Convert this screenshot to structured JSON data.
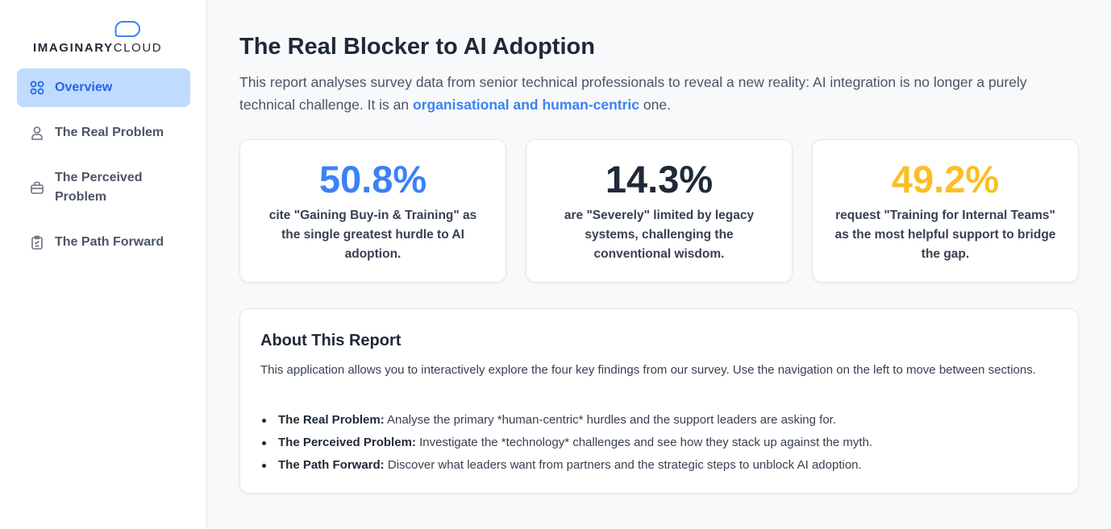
{
  "brand": {
    "name_bold": "IMAGINARY",
    "name_light": "CLOUD",
    "accent": "#3b82f6"
  },
  "sidebar": {
    "items": [
      {
        "label": "Overview",
        "icon": "grid-icon",
        "active": true
      },
      {
        "label": "The Real Problem",
        "icon": "user-icon",
        "active": false
      },
      {
        "label": "The Perceived Problem",
        "icon": "briefcase-icon",
        "active": false
      },
      {
        "label": "The Path Forward",
        "icon": "clipboard-icon",
        "active": false
      }
    ]
  },
  "main": {
    "title": "The Real Blocker to AI Adoption",
    "intro_before": "This report analyses survey data from senior technical professionals to reveal a new reality: AI integration is no longer a purely technical challenge. It is an ",
    "intro_highlight": "organisational and human-centric",
    "intro_after": " one.",
    "stats": [
      {
        "value": "50.8%",
        "text": "cite \"Gaining Buy-in & Training\" as the single greatest hurdle to AI adoption.",
        "color": "#3b82f6"
      },
      {
        "value": "14.3%",
        "text": "are \"Severely\" limited by legacy systems, challenging the conventional wisdom.",
        "color": "#1f2937"
      },
      {
        "value": "49.2%",
        "text": "request \"Training for Internal Teams\" as the most helpful support to bridge the gap.",
        "color": "#fbbf24"
      }
    ],
    "about": {
      "title": "About This Report",
      "description": "This application allows you to interactively explore the four key findings from our survey. Use the navigation on the left to move between sections.",
      "bullets": [
        {
          "title": "The Real Problem:",
          "text": " Analyse the primary *human-centric* hurdles and the support leaders are asking for."
        },
        {
          "title": "The Perceived Problem:",
          "text": " Investigate the *technology* challenges and see how they stack up against the myth."
        },
        {
          "title": "The Path Forward:",
          "text": " Discover what leaders want from partners and the strategic steps to unblock AI adoption."
        }
      ]
    }
  }
}
